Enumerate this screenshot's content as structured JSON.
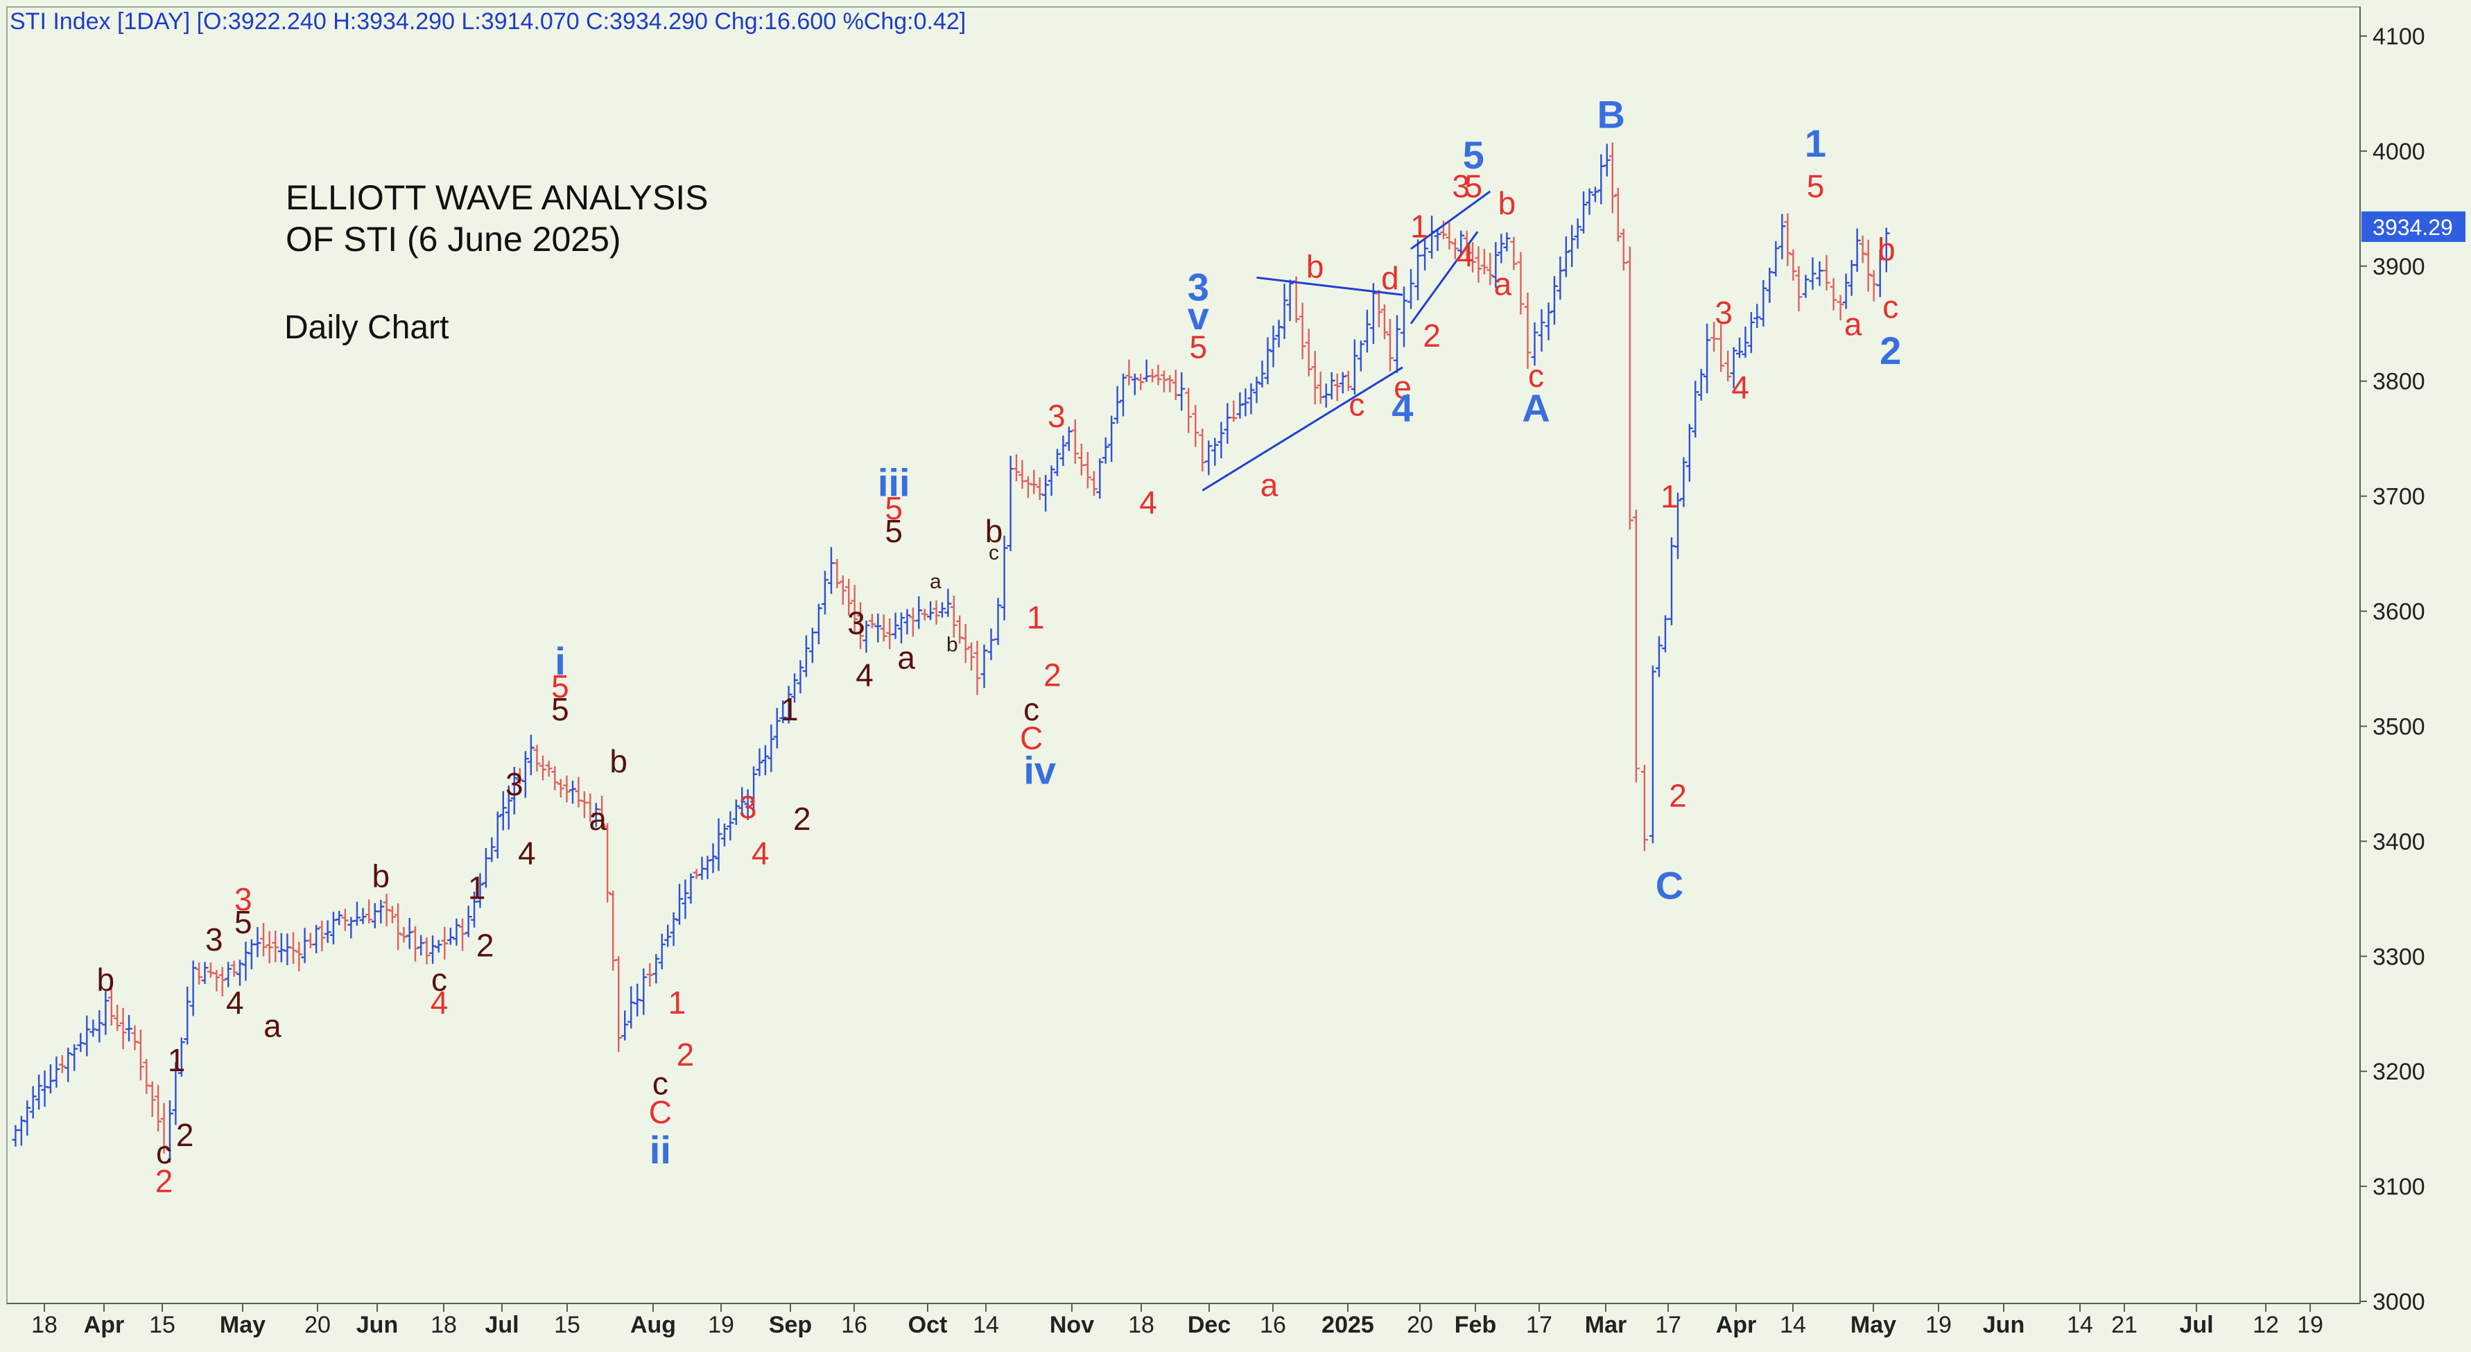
{
  "header": {
    "ohlc_text": "STI Index [1DAY] [O:3922.240 H:3934.290 L:3914.070 C:3934.290 Chg:16.600 %Chg:0.42]"
  },
  "chart_data": {
    "type": "ohlc",
    "title": "ELLIOTT WAVE ANALYSIS",
    "subtitle": "OF STI (6 June 2025)",
    "note": "Daily Chart",
    "ylim": [
      3000,
      4100
    ],
    "y_ticks": [
      4100,
      4000,
      3900,
      3800,
      3700,
      3600,
      3500,
      3400,
      3300,
      3200,
      3100,
      3000
    ],
    "last_price": "3934.29",
    "x_ticks": [
      "18",
      "Apr",
      "15",
      "May",
      "20",
      "Jun",
      "18",
      "Jul",
      "15",
      "Aug",
      "19",
      "Sep",
      "16",
      "Oct",
      "14",
      "Nov",
      "18",
      "Dec",
      "16",
      "2025",
      "20",
      "Feb",
      "17",
      "Mar",
      "17",
      "Apr",
      "14",
      "May",
      "19",
      "Jun",
      "14",
      "21",
      "Jul",
      "12",
      "19"
    ],
    "price_path": [
      {
        "date": "2024-03-13",
        "close": 3140
      },
      {
        "date": "2024-03-20",
        "close": 3185
      },
      {
        "date": "2024-03-27",
        "close": 3215
      },
      {
        "date": "2024-04-05",
        "close": 3255
      },
      {
        "date": "2024-04-12",
        "close": 3225
      },
      {
        "date": "2024-04-19",
        "close": 3140
      },
      {
        "date": "2024-04-26",
        "close": 3290
      },
      {
        "date": "2024-05-03",
        "close": 3280
      },
      {
        "date": "2024-05-10",
        "close": 3310
      },
      {
        "date": "2024-05-20",
        "close": 3305
      },
      {
        "date": "2024-05-31",
        "close": 3330
      },
      {
        "date": "2024-06-10",
        "close": 3340
      },
      {
        "date": "2024-06-21",
        "close": 3300
      },
      {
        "date": "2024-07-01",
        "close": 3330
      },
      {
        "date": "2024-07-08",
        "close": 3420
      },
      {
        "date": "2024-07-16",
        "close": 3480
      },
      {
        "date": "2024-07-26",
        "close": 3440
      },
      {
        "date": "2024-08-02",
        "close": 3420
      },
      {
        "date": "2024-08-06",
        "close": 3230
      },
      {
        "date": "2024-08-15",
        "close": 3300
      },
      {
        "date": "2024-08-22",
        "close": 3360
      },
      {
        "date": "2024-08-30",
        "close": 3400
      },
      {
        "date": "2024-09-06",
        "close": 3440
      },
      {
        "date": "2024-09-13",
        "close": 3500
      },
      {
        "date": "2024-09-20",
        "close": 3570
      },
      {
        "date": "2024-09-26",
        "close": 3640
      },
      {
        "date": "2024-10-03",
        "close": 3580
      },
      {
        "date": "2024-10-10",
        "close": 3585
      },
      {
        "date": "2024-10-17",
        "close": 3600
      },
      {
        "date": "2024-10-24",
        "close": 3600
      },
      {
        "date": "2024-10-31",
        "close": 3545
      },
      {
        "date": "2024-11-05",
        "close": 3600
      },
      {
        "date": "2024-11-08",
        "close": 3720
      },
      {
        "date": "2024-11-15",
        "close": 3700
      },
      {
        "date": "2024-11-22",
        "close": 3750
      },
      {
        "date": "2024-11-28",
        "close": 3710
      },
      {
        "date": "2024-12-05",
        "close": 3800
      },
      {
        "date": "2024-12-12",
        "close": 3805
      },
      {
        "date": "2024-12-19",
        "close": 3790
      },
      {
        "date": "2024-12-24",
        "close": 3730
      },
      {
        "date": "2025-01-02",
        "close": 3780
      },
      {
        "date": "2025-01-10",
        "close": 3830
      },
      {
        "date": "2025-01-14",
        "close": 3880
      },
      {
        "date": "2025-01-20",
        "close": 3790
      },
      {
        "date": "2025-01-28",
        "close": 3800
      },
      {
        "date": "2025-02-03",
        "close": 3870
      },
      {
        "date": "2025-02-07",
        "close": 3820
      },
      {
        "date": "2025-02-12",
        "close": 3890
      },
      {
        "date": "2025-02-17",
        "close": 3930
      },
      {
        "date": "2025-02-24",
        "close": 3920
      },
      {
        "date": "2025-03-03",
        "close": 3890
      },
      {
        "date": "2025-03-07",
        "close": 3930
      },
      {
        "date": "2025-03-12",
        "close": 3830
      },
      {
        "date": "2025-03-17",
        "close": 3860
      },
      {
        "date": "2025-03-24",
        "close": 3940
      },
      {
        "date": "2025-03-31",
        "close": 3990
      },
      {
        "date": "2025-04-04",
        "close": 3900
      },
      {
        "date": "2025-04-07",
        "close": 3470
      },
      {
        "date": "2025-04-09",
        "close": 3400
      },
      {
        "date": "2025-04-11",
        "close": 3550
      },
      {
        "date": "2025-04-14",
        "close": 3600
      },
      {
        "date": "2025-04-17",
        "close": 3700
      },
      {
        "date": "2025-04-24",
        "close": 3840
      },
      {
        "date": "2025-04-29",
        "close": 3810
      },
      {
        "date": "2025-05-06",
        "close": 3860
      },
      {
        "date": "2025-05-12",
        "close": 3930
      },
      {
        "date": "2025-05-16",
        "close": 3880
      },
      {
        "date": "2025-05-21",
        "close": 3890
      },
      {
        "date": "2025-05-26",
        "close": 3870
      },
      {
        "date": "2025-05-30",
        "close": 3920
      },
      {
        "date": "2025-06-03",
        "close": 3880
      },
      {
        "date": "2025-06-06",
        "close": 3934.29
      }
    ],
    "trendlines": [
      {
        "from": {
          "date": "2024-12-24",
          "price": 3705
        },
        "to": {
          "date": "2025-02-10",
          "price": 3812
        }
      },
      {
        "from": {
          "date": "2025-01-06",
          "price": 3890
        },
        "to": {
          "date": "2025-02-10",
          "price": 3875
        }
      },
      {
        "from": {
          "date": "2025-02-12",
          "price": 3850
        },
        "to": {
          "date": "2025-02-28",
          "price": 3930
        }
      },
      {
        "from": {
          "date": "2025-02-12",
          "price": 3915
        },
        "to": {
          "date": "2025-03-03",
          "price": 3965
        }
      }
    ],
    "wave_labels": [
      {
        "text": "c",
        "date": "2024-04-19",
        "price": 3120,
        "color": "#5a1010"
      },
      {
        "text": "2",
        "date": "2024-04-19",
        "price": 3095,
        "color": "#e83030"
      },
      {
        "text": "b",
        "date": "2024-04-05",
        "price": 3270,
        "color": "#5a1010"
      },
      {
        "text": "1",
        "date": "2024-04-22",
        "price": 3200,
        "color": "#5a1010"
      },
      {
        "text": "2",
        "date": "2024-04-24",
        "price": 3135,
        "color": "#5a1010"
      },
      {
        "text": "3",
        "date": "2024-05-01",
        "price": 3305,
        "color": "#5a1010"
      },
      {
        "text": "4",
        "date": "2024-05-06",
        "price": 3250,
        "color": "#5a1010"
      },
      {
        "text": "3",
        "date": "2024-05-08",
        "price": 3340,
        "color": "#e83030"
      },
      {
        "text": "5",
        "date": "2024-05-08",
        "price": 3320,
        "color": "#5a1010"
      },
      {
        "text": "a",
        "date": "2024-05-15",
        "price": 3230,
        "color": "#5a1010"
      },
      {
        "text": "b",
        "date": "2024-06-10",
        "price": 3360,
        "color": "#5a1010"
      },
      {
        "text": "c",
        "date": "2024-06-24",
        "price": 3270,
        "color": "#5a1010"
      },
      {
        "text": "4",
        "date": "2024-06-24",
        "price": 3250,
        "color": "#e83030"
      },
      {
        "text": "1",
        "date": "2024-07-03",
        "price": 3350,
        "color": "#5a1010"
      },
      {
        "text": "2",
        "date": "2024-07-05",
        "price": 3300,
        "color": "#5a1010"
      },
      {
        "text": "3",
        "date": "2024-07-12",
        "price": 3440,
        "color": "#5a1010"
      },
      {
        "text": "4",
        "date": "2024-07-15",
        "price": 3380,
        "color": "#5a1010"
      },
      {
        "text": "i",
        "date": "2024-07-23",
        "price": 3545,
        "color": "#3a6ee0"
      },
      {
        "text": "5",
        "date": "2024-07-23",
        "price": 3525,
        "color": "#e83030"
      },
      {
        "text": "5",
        "date": "2024-07-23",
        "price": 3505,
        "color": "#5a1010"
      },
      {
        "text": "a",
        "date": "2024-08-01",
        "price": 3410,
        "color": "#5a1010"
      },
      {
        "text": "b",
        "date": "2024-08-06",
        "price": 3460,
        "color": "#5a1010"
      },
      {
        "text": "1",
        "date": "2024-08-20",
        "price": 3250,
        "color": "#e83030"
      },
      {
        "text": "2",
        "date": "2024-08-22",
        "price": 3205,
        "color": "#e83030"
      },
      {
        "text": "c",
        "date": "2024-08-16",
        "price": 3180,
        "color": "#5a1010"
      },
      {
        "text": "C",
        "date": "2024-08-16",
        "price": 3155,
        "color": "#e83030"
      },
      {
        "text": "ii",
        "date": "2024-08-16",
        "price": 3120,
        "color": "#3a6ee0"
      },
      {
        "text": "3",
        "date": "2024-09-06",
        "price": 3420,
        "color": "#e83030"
      },
      {
        "text": "4",
        "date": "2024-09-09",
        "price": 3380,
        "color": "#e83030"
      },
      {
        "text": "1",
        "date": "2024-09-16",
        "price": 3505,
        "color": "#5a1010"
      },
      {
        "text": "2",
        "date": "2024-09-19",
        "price": 3410,
        "color": "#5a1010"
      },
      {
        "text": "3",
        "date": "2024-10-02",
        "price": 3580,
        "color": "#5a1010"
      },
      {
        "text": "4",
        "date": "2024-10-04",
        "price": 3535,
        "color": "#5a1010"
      },
      {
        "text": "iii",
        "date": "2024-10-11",
        "price": 3700,
        "color": "#3a6ee0"
      },
      {
        "text": "5",
        "date": "2024-10-11",
        "price": 3680,
        "color": "#e83030"
      },
      {
        "text": "5",
        "date": "2024-10-11",
        "price": 3660,
        "color": "#5a1010"
      },
      {
        "text": "a",
        "date": "2024-10-14",
        "price": 3550,
        "color": "#5a1010"
      },
      {
        "text": "a",
        "date": "2024-10-21",
        "price": 3620,
        "color": "#3a1a1a"
      },
      {
        "text": "b",
        "date": "2024-10-25",
        "price": 3565,
        "color": "#3a1a1a"
      },
      {
        "text": "b",
        "date": "2024-11-04",
        "price": 3660,
        "color": "#5a1010"
      },
      {
        "text": "c",
        "date": "2024-11-04",
        "price": 3645,
        "color": "#3a1a1a"
      },
      {
        "text": "1",
        "date": "2024-11-14",
        "price": 3585,
        "color": "#e83030"
      },
      {
        "text": "2",
        "date": "2024-11-18",
        "price": 3535,
        "color": "#e83030"
      },
      {
        "text": "c",
        "date": "2024-11-13",
        "price": 3505,
        "color": "#5a1010"
      },
      {
        "text": "C",
        "date": "2024-11-13",
        "price": 3480,
        "color": "#e83030"
      },
      {
        "text": "iv",
        "date": "2024-11-15",
        "price": 3450,
        "color": "#3a6ee0"
      },
      {
        "text": "3",
        "date": "2024-11-19",
        "price": 3760,
        "color": "#e83030"
      },
      {
        "text": "4",
        "date": "2024-12-11",
        "price": 3685,
        "color": "#e83030"
      },
      {
        "text": "3",
        "date": "2024-12-23",
        "price": 3870,
        "color": "#3a6ee0"
      },
      {
        "text": "v",
        "date": "2024-12-23",
        "price": 3845,
        "color": "#3a6ee0"
      },
      {
        "text": "5",
        "date": "2024-12-23",
        "price": 3820,
        "color": "#e83030"
      },
      {
        "text": "a",
        "date": "2025-01-09",
        "price": 3700,
        "color": "#e83030"
      },
      {
        "text": "b",
        "date": "2025-01-20",
        "price": 3890,
        "color": "#e83030"
      },
      {
        "text": "c",
        "date": "2025-01-30",
        "price": 3770,
        "color": "#e83030"
      },
      {
        "text": "d",
        "date": "2025-02-07",
        "price": 3880,
        "color": "#e83030"
      },
      {
        "text": "e",
        "date": "2025-02-10",
        "price": 3785,
        "color": "#e83030"
      },
      {
        "text": "4",
        "date": "2025-02-10",
        "price": 3765,
        "color": "#3a6ee0"
      },
      {
        "text": "1",
        "date": "2025-02-14",
        "price": 3925,
        "color": "#e83030"
      },
      {
        "text": "2",
        "date": "2025-02-17",
        "price": 3830,
        "color": "#e83030"
      },
      {
        "text": "3",
        "date": "2025-02-24",
        "price": 3960,
        "color": "#e83030"
      },
      {
        "text": "5",
        "date": "2025-02-27",
        "price": 3985,
        "color": "#3a6ee0"
      },
      {
        "text": "5",
        "date": "2025-02-27",
        "price": 3960,
        "color": "#e83030"
      },
      {
        "text": "4",
        "date": "2025-02-25",
        "price": 3900,
        "color": "#e83030"
      },
      {
        "text": "b",
        "date": "2025-03-07",
        "price": 3945,
        "color": "#e83030"
      },
      {
        "text": "a",
        "date": "2025-03-06",
        "price": 3875,
        "color": "#e83030"
      },
      {
        "text": "c",
        "date": "2025-03-14",
        "price": 3795,
        "color": "#e83030"
      },
      {
        "text": "A",
        "date": "2025-03-14",
        "price": 3765,
        "color": "#3a6ee0"
      },
      {
        "text": "B",
        "date": "2025-04-01",
        "price": 4020,
        "color": "#3a6ee0"
      },
      {
        "text": "1",
        "date": "2025-04-15",
        "price": 3690,
        "color": "#e83030"
      },
      {
        "text": "2",
        "date": "2025-04-17",
        "price": 3430,
        "color": "#e83030"
      },
      {
        "text": "C",
        "date": "2025-04-15",
        "price": 3350,
        "color": "#3a6ee0"
      },
      {
        "text": "3",
        "date": "2025-04-28",
        "price": 3850,
        "color": "#e83030"
      },
      {
        "text": "4",
        "date": "2025-05-02",
        "price": 3785,
        "color": "#e83030"
      },
      {
        "text": "1",
        "date": "2025-05-20",
        "price": 3995,
        "color": "#3a6ee0"
      },
      {
        "text": "5",
        "date": "2025-05-20",
        "price": 3960,
        "color": "#e83030"
      },
      {
        "text": "a",
        "date": "2025-05-29",
        "price": 3840,
        "color": "#e83030"
      },
      {
        "text": "b",
        "date": "2025-06-06",
        "price": 3905,
        "color": "#e83030"
      },
      {
        "text": "c",
        "date": "2025-06-07",
        "price": 3855,
        "color": "#e83030"
      },
      {
        "text": "2",
        "date": "2025-06-07",
        "price": 3815,
        "color": "#3a6ee0"
      }
    ],
    "colors": {
      "background": "#eef5e6",
      "up_bar": "#2f4fd8",
      "down_bar": "#e06060",
      "trendline": "#2040d0",
      "axis_text": "#222222",
      "last_price_bg": "#2f5fe0"
    }
  }
}
